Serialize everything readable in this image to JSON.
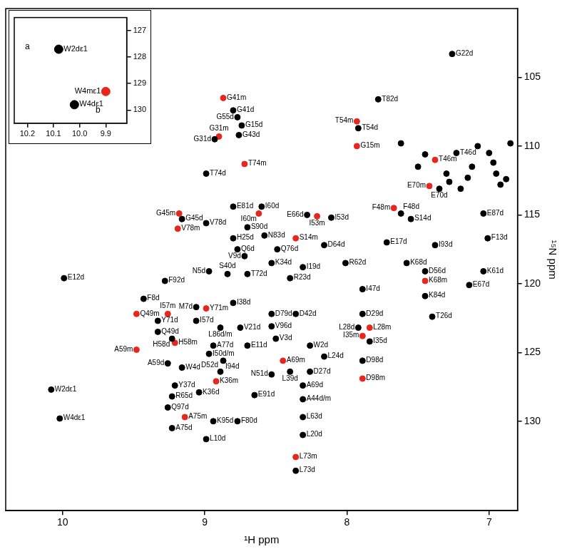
{
  "chart_data": [
    {
      "type": "scatter",
      "x_label": "¹H ppm",
      "y_label": "¹⁵N ppm",
      "xlim": [
        10.4,
        6.8
      ],
      "xticks": [
        10,
        9,
        8,
        7
      ],
      "ylim": [
        136.5,
        100
      ],
      "yticks": [
        105,
        110,
        115,
        120,
        125,
        130
      ],
      "tick_labels": true,
      "series": [
        {
          "color": "#000000",
          "marker": "circle",
          "x": [
            7.26,
            7.78,
            8.8,
            8.77,
            8.74,
            8.76,
            8.93,
            7.92,
            7.23,
            8.99,
            7.35,
            8.8,
            8.6,
            9.16,
            8.99,
            8.11,
            8.28,
            7.62,
            7.04,
            7.55,
            8.7,
            8.8,
            8.58,
            7.72,
            7.01,
            7.38,
            8.77,
            8.49,
            8.16,
            8.72,
            8.53,
            8.31,
            8.01,
            7.58,
            7.04,
            7.45,
            7.14,
            8.97,
            8.84,
            9.99,
            9.28,
            8.7,
            8.4,
            7.89,
            7.45,
            9.43,
            9.06,
            8.8,
            9.33,
            9.06,
            8.53,
            8.36,
            7.89,
            7.4,
            7.92,
            9.33,
            8.89,
            8.75,
            8.53,
            9.23,
            7.84,
            8.5,
            8.94,
            8.7,
            8.26,
            8.97,
            8.16,
            8.87,
            9.26,
            9.16,
            8.89,
            7.89,
            8.4,
            8.26,
            9.21,
            8.53,
            8.31,
            9.04,
            10.08,
            10.02,
            9.23,
            8.65,
            8.31,
            9.26,
            8.94,
            8.77,
            8.31,
            9.23,
            8.31,
            8.99,
            8.36,
            7.62,
            7.5,
            7.45,
            7.3,
            7.12,
            7.08,
            7.0,
            6.97,
            6.95,
            6.92,
            6.88,
            6.85,
            7.15,
            7.28,
            7.2
          ],
          "values": [
            103.3,
            106.6,
            107.4,
            107.9,
            108.5,
            109.2,
            109.5,
            108.7,
            110.5,
            112.0,
            113.1,
            114.4,
            114.4,
            115.3,
            115.6,
            115.2,
            115.0,
            114.9,
            114.9,
            115.3,
            115.9,
            116.7,
            116.5,
            117.0,
            116.7,
            117.2,
            117.5,
            117.5,
            117.2,
            118.0,
            118.5,
            118.8,
            118.5,
            118.5,
            119.1,
            119.1,
            120.1,
            119.1,
            119.3,
            119.6,
            119.8,
            119.3,
            119.6,
            120.4,
            120.9,
            121.1,
            121.7,
            121.4,
            122.7,
            122.7,
            122.2,
            122.2,
            122.2,
            122.4,
            123.2,
            123.5,
            123.2,
            123.2,
            123.1,
            124.0,
            124.2,
            124.0,
            124.5,
            124.5,
            124.5,
            125.1,
            125.3,
            125.6,
            125.8,
            126.1,
            126.4,
            125.6,
            126.4,
            126.4,
            127.4,
            126.6,
            127.4,
            127.9,
            127.7,
            129.8,
            128.2,
            128.1,
            128.4,
            129.0,
            130.0,
            130.0,
            129.7,
            130.5,
            131.0,
            131.3,
            133.6,
            109.8,
            111.5,
            110.6,
            112.0,
            111.5,
            110.0,
            110.5,
            111.2,
            112.0,
            112.8,
            112.4,
            109.8,
            112.3,
            112.6,
            113.1
          ],
          "labels": [
            "G22d",
            "T82d",
            "G41d",
            "G55d",
            "G15d",
            "G43d",
            "G31d",
            "T54d",
            "T46d",
            "T74d",
            "E70d",
            "E81d",
            "I60d",
            "G45d",
            "V78d",
            "I53d",
            "E66d",
            "F48d",
            "E87d",
            "S14d",
            "S90d",
            "H25d",
            "N83d",
            "E17d",
            "F13d",
            "I93d",
            "Q6d",
            "Q76d",
            "D64d",
            "V9d",
            "K34d",
            "I19d",
            "R62d",
            "K68d",
            "K61d",
            "D56d",
            "E67d",
            "N5d",
            "S40d",
            "E12d",
            "F92d",
            "T72d",
            "R23d",
            "I47d",
            "K84d",
            "F8d",
            "M7d",
            "I38d",
            "Y71d",
            "I57d",
            "D79d",
            "D42d",
            "D29d",
            "T26d",
            "L28d",
            "Q49d",
            "L86d/m",
            "V21d",
            "V96d",
            "H58d",
            "I35d",
            "V3d",
            "A77d",
            "E11d",
            "W2d",
            "I50d/m",
            "L24d",
            "I94d",
            "A59d",
            "W4d",
            "D52d",
            "D98d",
            "L39d",
            "D27d",
            "Y37d",
            "N51d",
            "A69d",
            "K36d",
            "W2dε1",
            "W4dε1",
            "R65d",
            "E91d",
            "A44d/m",
            "Q97d",
            "K95d",
            "F80d",
            "L63d",
            "A75d",
            "L20d",
            "L10d",
            "L73d",
            null,
            null,
            null,
            null,
            null,
            null,
            null,
            null,
            null,
            null,
            null,
            null,
            null,
            null,
            null
          ]
        },
        {
          "color": "#e8261c",
          "marker": "circle",
          "x": [
            8.87,
            8.9,
            7.93,
            7.93,
            7.38,
            8.72,
            7.42,
            8.62,
            9.18,
            9.19,
            8.21,
            7.67,
            8.36,
            7.45,
            8.99,
            9.48,
            9.26,
            7.84,
            9.21,
            7.89,
            9.48,
            8.45,
            7.89,
            8.92,
            9.14,
            8.36
          ],
          "values": [
            106.5,
            109.3,
            108.2,
            110.0,
            111.0,
            111.3,
            112.9,
            114.9,
            114.9,
            116.0,
            115.1,
            114.5,
            116.7,
            119.8,
            121.8,
            122.2,
            122.2,
            123.2,
            124.3,
            123.8,
            124.8,
            125.6,
            126.9,
            127.1,
            129.7,
            132.6
          ],
          "labels": [
            "G41m",
            "G31m",
            "T54m",
            "G15m",
            "T46m",
            "T74m",
            "E70m",
            "I60m",
            "G45m",
            "V78m",
            "I53m",
            "F48m",
            "S14m",
            "K68m",
            "Y71m",
            "Q49m",
            "I57m",
            "L28m",
            "H58m",
            "I35m",
            "A59m",
            "A69m",
            "D98m",
            "K36m",
            "A75m",
            "L73m"
          ]
        }
      ]
    },
    {
      "type": "scatter",
      "xlim": [
        10.25,
        9.82
      ],
      "xticks": [
        {
          "value": 10.2,
          "label": "10.2"
        },
        {
          "value": 10.1,
          "label": "10.1"
        },
        {
          "value": 10,
          "label": "10.0"
        },
        {
          "value": 9.9,
          "label": "9.9"
        }
      ],
      "ylim": [
        130.5,
        126.5
      ],
      "yticks": [
        127,
        128,
        129,
        130
      ],
      "series": [
        {
          "color": "#000000",
          "marker": "circle",
          "x": [
            10.08,
            10.02
          ],
          "values": [
            127.7,
            129.8
          ],
          "labels": [
            "W2dε1",
            "W4dε1"
          ]
        },
        {
          "color": "#e8261c",
          "marker": "circle",
          "x": [
            9.9
          ],
          "values": [
            129.3
          ],
          "labels": [
            "W4mε1"
          ]
        }
      ],
      "annotations": [
        {
          "text": "a",
          "x": 10.2,
          "y": 127.6
        },
        {
          "text": "b",
          "x": 9.93,
          "y": 130.0
        }
      ]
    }
  ]
}
